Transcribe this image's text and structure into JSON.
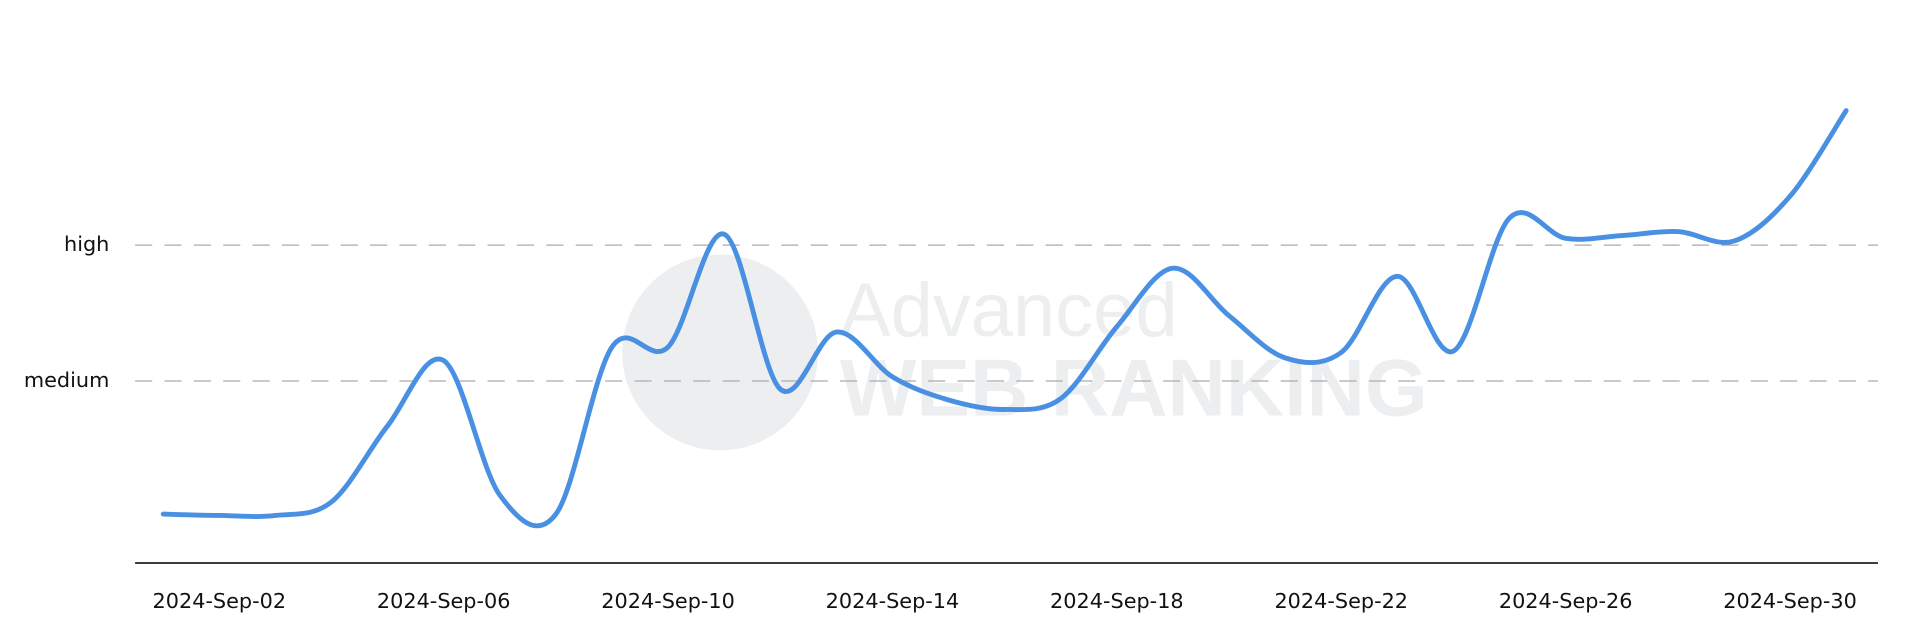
{
  "chart_data": {
    "type": "line",
    "watermark": [
      "Advanced",
      "WEB RANKING"
    ],
    "categories": [
      null,
      "2024-Sep-02",
      null,
      null,
      null,
      "2024-Sep-06",
      null,
      null,
      null,
      "2024-Sep-10",
      null,
      null,
      null,
      "2024-Sep-14",
      null,
      null,
      null,
      "2024-Sep-18",
      null,
      null,
      null,
      "2024-Sep-22",
      null,
      null,
      null,
      "2024-Sep-26",
      null,
      null,
      null,
      "2024-Sep-30",
      null
    ],
    "series": [
      {
        "color": "#4a90e2",
        "values": [
          1.02,
          1.01,
          1.01,
          1.11,
          1.67,
          2.15,
          1.16,
          1.02,
          2.25,
          2.25,
          3.08,
          1.94,
          2.36,
          2.03,
          1.86,
          1.79,
          1.87,
          2.4,
          2.83,
          2.48,
          2.17,
          2.21,
          2.77,
          2.22,
          3.2,
          3.05,
          3.07,
          3.1,
          3.03,
          3.36,
          3.99
        ]
      }
    ],
    "ylim": [
      0.66,
      4.2
    ],
    "yticks": [
      {
        "value": 2,
        "label": "medium"
      },
      {
        "value": 3,
        "label": "high"
      }
    ],
    "grid": true
  }
}
